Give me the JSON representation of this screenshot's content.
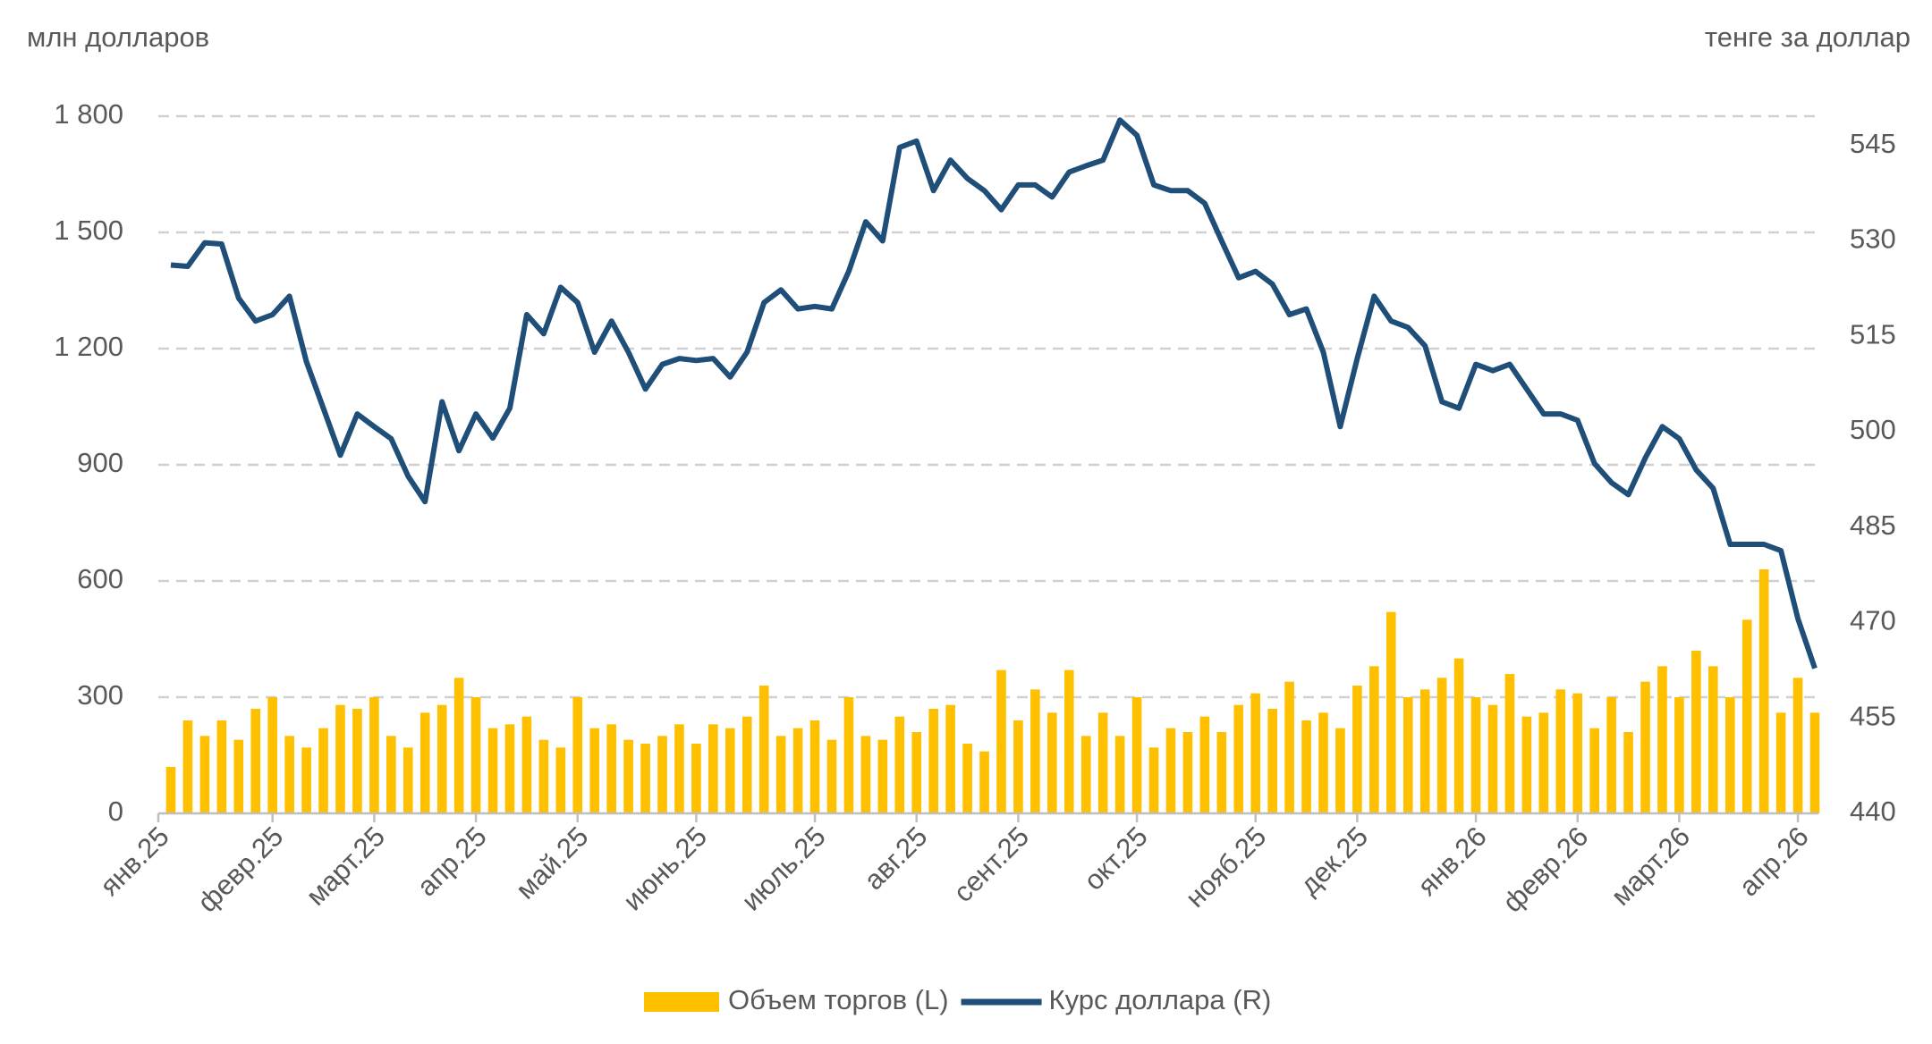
{
  "chart_data": {
    "type": "combo",
    "y_label": "млн долларов",
    "y2_label": "тенге за доллар",
    "categories": [
      "янв.25",
      null,
      null,
      null,
      null,
      null,
      "февр.25",
      null,
      null,
      null,
      null,
      null,
      "март.25",
      null,
      null,
      null,
      null,
      null,
      "апр.25",
      null,
      null,
      null,
      null,
      null,
      "май.25",
      null,
      null,
      null,
      null,
      null,
      null,
      "июнь.25",
      null,
      null,
      null,
      null,
      null,
      null,
      "июль.25",
      null,
      null,
      null,
      null,
      null,
      "авг.25",
      null,
      null,
      null,
      null,
      null,
      "сент.25",
      null,
      null,
      null,
      null,
      null,
      null,
      "окт.25",
      null,
      null,
      null,
      null,
      null,
      null,
      "нояб.25",
      null,
      null,
      null,
      null,
      null,
      "дек.25",
      null,
      null,
      null,
      null,
      null,
      null,
      "янв.26",
      null,
      null,
      null,
      null,
      null,
      "февр.26",
      null,
      null,
      null,
      null,
      null,
      "март.26",
      null,
      null,
      null,
      null,
      null,
      null,
      "апр.26",
      null
    ],
    "series": [
      {
        "name": "Объем торгов (L)",
        "type": "bar",
        "color": "#ffc000",
        "values": [
          120,
          240,
          200,
          240,
          190,
          270,
          300,
          200,
          170,
          220,
          280,
          270,
          300,
          200,
          170,
          260,
          280,
          350,
          300,
          220,
          230,
          250,
          190,
          170,
          300,
          220,
          230,
          190,
          180,
          200,
          230,
          180,
          230,
          220,
          250,
          330,
          200,
          220,
          240,
          190,
          300,
          200,
          190,
          250,
          210,
          270,
          280,
          180,
          160,
          370,
          240,
          320,
          260,
          370,
          200,
          260,
          200,
          300,
          170,
          220,
          210,
          250,
          210,
          280,
          310,
          270,
          340,
          240,
          260,
          220,
          330,
          380,
          520,
          300,
          320,
          350,
          400,
          300,
          280,
          360,
          250,
          260,
          320,
          310,
          220,
          300,
          210,
          340,
          380,
          300,
          420,
          380,
          300,
          500,
          630,
          260,
          350,
          260
        ]
      },
      {
        "name": "Курс доллара (R)",
        "type": "line",
        "axis": "y2",
        "color": "#1f4e79",
        "values": [
          526.2,
          526,
          529.7,
          529.5,
          521,
          517.4,
          518.4,
          521.3,
          511,
          503.7,
          496.3,
          502.8,
          500.8,
          498.9,
          493,
          489,
          504.7,
          497,
          502.8,
          499,
          503.7,
          518.4,
          515.4,
          522.7,
          520.3,
          512.5,
          517.4,
          512.5,
          506.7,
          510.6,
          511.5,
          511.2,
          511.5,
          508.6,
          512.5,
          520.3,
          522.3,
          519.3,
          519.7,
          519.3,
          525.2,
          533,
          530,
          544.7,
          545.7,
          537.9,
          542.7,
          539.8,
          537.9,
          534.9,
          538.8,
          538.8,
          536.9,
          540.8,
          541.8,
          542.7,
          549,
          546.6,
          538.8,
          537.9,
          537.9,
          535.9,
          530,
          524.2,
          525.2,
          523.2,
          518.4,
          519.3,
          512.5,
          500.8,
          511.5,
          521.3,
          517.4,
          516.4,
          513.5,
          504.7,
          503.7,
          510.6,
          509.6,
          510.6,
          506.7,
          502.8,
          502.8,
          501.8,
          495,
          492,
          490.1,
          495.9,
          500.8,
          498.9,
          494,
          491.1,
          482.3,
          482.3,
          482.3,
          481.3,
          470.6,
          462.8
        ]
      }
    ],
    "ylim": [
      0,
      1800
    ],
    "yticks": [
      0,
      300,
      600,
      900,
      {
        "value": 1200,
        "label": "1 200"
      },
      {
        "value": 1500,
        "label": "1 500"
      },
      {
        "value": 1800,
        "label": "1 800"
      }
    ],
    "y2lim": [
      440,
      549.6
    ],
    "y2ticks": [
      440,
      455,
      470,
      485,
      500,
      515,
      530,
      545
    ],
    "grid": true,
    "legend": "bottom"
  }
}
